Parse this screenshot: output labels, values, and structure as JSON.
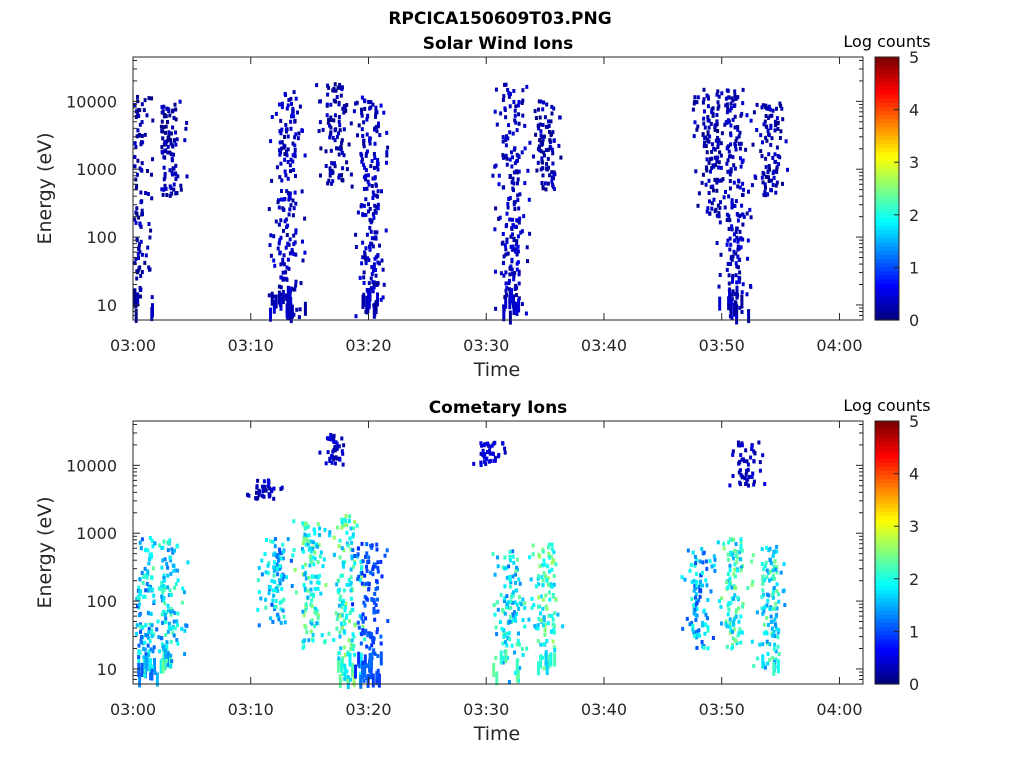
{
  "figure_title": "RPCICA150609T03.PNG",
  "chart_data": [
    {
      "type": "heatmap",
      "title": "Solar Wind Ions",
      "xlabel": "Time",
      "ylabel": "Energy (eV)",
      "y_scale": "log",
      "ylim": [
        6,
        45000
      ],
      "xlim": [
        "03:00",
        "04:02"
      ],
      "x_ticks": [
        "03:00",
        "03:10",
        "03:20",
        "03:30",
        "03:40",
        "03:50",
        "04:00"
      ],
      "y_ticks": [
        "10",
        "100",
        "1000",
        "10000"
      ],
      "grid": false,
      "colorbar": {
        "label": "Log counts",
        "range": [
          0,
          5
        ],
        "ticks": [
          "0",
          "1",
          "2",
          "3",
          "4",
          "5"
        ],
        "colormap": "jet"
      },
      "clusters": [
        {
          "t": "03:00",
          "e_min": 6,
          "e_max": 12000,
          "log_counts": 0.2
        },
        {
          "t": "03:03",
          "e_min": 400,
          "e_max": 10000,
          "log_counts": 0.2
        },
        {
          "t": "03:13",
          "e_min": 6,
          "e_max": 14000,
          "log_counts": 0.3
        },
        {
          "t": "03:17",
          "e_min": 600,
          "e_max": 18000,
          "log_counts": 0.2
        },
        {
          "t": "03:20",
          "e_min": 6,
          "e_max": 12000,
          "log_counts": 0.3
        },
        {
          "t": "03:32",
          "e_min": 6,
          "e_max": 18000,
          "log_counts": 0.3
        },
        {
          "t": "03:35",
          "e_min": 500,
          "e_max": 10000,
          "log_counts": 0.2
        },
        {
          "t": "03:49",
          "e_min": 200,
          "e_max": 15000,
          "log_counts": 0.2
        },
        {
          "t": "03:51",
          "e_min": 6,
          "e_max": 15000,
          "log_counts": 0.3
        },
        {
          "t": "03:54",
          "e_min": 400,
          "e_max": 10000,
          "log_counts": 0.2
        }
      ]
    },
    {
      "type": "heatmap",
      "title": "Cometary Ions",
      "xlabel": "Time",
      "ylabel": "Energy (eV)",
      "y_scale": "log",
      "ylim": [
        6,
        45000
      ],
      "xlim": [
        "03:00",
        "04:02"
      ],
      "x_ticks": [
        "03:00",
        "03:10",
        "03:20",
        "03:30",
        "03:40",
        "03:50",
        "04:00"
      ],
      "y_ticks": [
        "10",
        "100",
        "1000",
        "10000"
      ],
      "grid": false,
      "colorbar": {
        "label": "Log counts",
        "range": [
          0,
          5
        ],
        "ticks": [
          "0",
          "1",
          "2",
          "3",
          "4",
          "5"
        ],
        "colormap": "jet"
      },
      "clusters": [
        {
          "t": "03:01",
          "e_min": 6,
          "e_max": 900,
          "log_counts": 1.6
        },
        {
          "t": "03:03",
          "e_min": 10,
          "e_max": 800,
          "log_counts": 1.8
        },
        {
          "t": "03:12",
          "e_min": 40,
          "e_max": 900,
          "log_counts": 1.6
        },
        {
          "t": "03:15",
          "e_min": 20,
          "e_max": 1500,
          "log_counts": 2.0
        },
        {
          "t": "03:18",
          "e_min": 6,
          "e_max": 1800,
          "log_counts": 2.1
        },
        {
          "t": "03:20",
          "e_min": 6,
          "e_max": 700,
          "log_counts": 1.0
        },
        {
          "t": "03:32",
          "e_min": 6,
          "e_max": 600,
          "log_counts": 1.8
        },
        {
          "t": "03:35",
          "e_min": 10,
          "e_max": 700,
          "log_counts": 2.1
        },
        {
          "t": "03:48",
          "e_min": 20,
          "e_max": 600,
          "log_counts": 1.5
        },
        {
          "t": "03:51",
          "e_min": 20,
          "e_max": 900,
          "log_counts": 2.0
        },
        {
          "t": "03:54",
          "e_min": 10,
          "e_max": 700,
          "log_counts": 1.9
        },
        {
          "t": "03:30",
          "e_min": 10000,
          "e_max": 22000,
          "log_counts": 0.4
        },
        {
          "t": "03:17",
          "e_min": 10000,
          "e_max": 28000,
          "log_counts": 0.3
        },
        {
          "t": "03:52",
          "e_min": 5000,
          "e_max": 22000,
          "log_counts": 0.3
        },
        {
          "t": "03:11",
          "e_min": 3000,
          "e_max": 6000,
          "log_counts": 0.3
        }
      ]
    }
  ]
}
